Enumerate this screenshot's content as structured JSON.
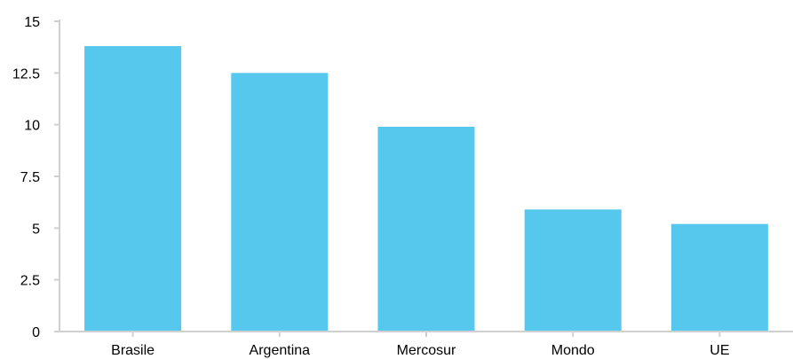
{
  "chart_data": {
    "type": "bar",
    "title": "",
    "xlabel": "",
    "ylabel": "",
    "categories": [
      "Brasile",
      "Argentina",
      "Mercosur",
      "Mondo",
      "UE"
    ],
    "values": [
      13.8,
      12.5,
      9.9,
      5.9,
      5.2
    ],
    "ylim": [
      0,
      15
    ],
    "yticks": [
      "0",
      "2.5",
      "5",
      "7.5",
      "10",
      "12.5",
      "15"
    ],
    "grid": false,
    "legend": "none",
    "bar_color": "#56c8ee",
    "axis_color": "#d0d0d0"
  }
}
